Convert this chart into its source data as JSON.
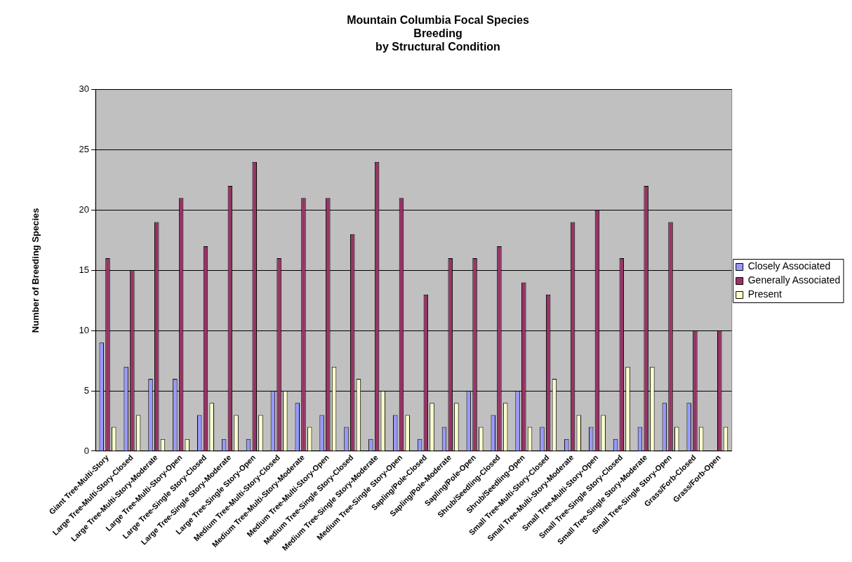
{
  "chart_data": {
    "type": "bar",
    "title": "Mountain Columbia Focal Species\nBreeding\nby Structural Condition",
    "ylabel": "Number of Breeding Species",
    "categories": [
      "Giant Tree-Multi-Story",
      "Large Tree-Multi-Story-Closed",
      "Large Tree-Multi-Story-Moderate",
      "Large Tree-Multi-Story-Open",
      "Large Tree-Single Story-Closed",
      "Large Tree-Single Story-Moderate",
      "Large Tree-Single Story-Open",
      "Medium Tree-Multi-Story-Closed",
      "Medium Tree-Multi-Story-Moderate",
      "Medium Tree-Multi-Story-Open",
      "Medium Tree-Single Story-Closed",
      "Medium Tree-Single Story-Moderate",
      "Medium Tree-Single Story-Open",
      "Sapling/Pole-Closed",
      "Sapling/Pole-Moderate",
      "Sapling/Pole-Open",
      "Shrub/Seedling-Closed",
      "Shrub/Seedling-Open",
      "Small Tree-Multi-Story-Closed",
      "Small Tree-Multi-Story-Moderate",
      "Small Tree-Multi-Story-Open",
      "Small Tree-Single Story-Closed",
      "Small Tree-Single Story-Moderate",
      "Small Tree-Single Story-Open",
      "Grass/Forb-Closed",
      "Grass/Forb-Open"
    ],
    "series": [
      {
        "name": "Closely Associated",
        "color": "#9999ff",
        "values": [
          9,
          7,
          6,
          6,
          3,
          1,
          1,
          5,
          4,
          3,
          2,
          1,
          3,
          1,
          2,
          5,
          3,
          5,
          2,
          1,
          2,
          1,
          2,
          4,
          4,
          0
        ]
      },
      {
        "name": "Generally Associated",
        "color": "#993366",
        "values": [
          16,
          15,
          19,
          21,
          17,
          22,
          24,
          16,
          21,
          21,
          18,
          24,
          21,
          13,
          16,
          16,
          17,
          14,
          13,
          19,
          20,
          16,
          22,
          19,
          10,
          10
        ]
      },
      {
        "name": "Present",
        "color": "#ffffcc",
        "values": [
          2,
          3,
          1,
          1,
          4,
          3,
          3,
          5,
          2,
          7,
          6,
          5,
          3,
          4,
          4,
          2,
          4,
          2,
          6,
          3,
          3,
          7,
          7,
          2,
          2,
          2
        ]
      }
    ],
    "ylim": [
      0,
      30
    ],
    "yticks": [
      0,
      5,
      10,
      15,
      20,
      25,
      30
    ],
    "grid": "y",
    "legend": "right"
  }
}
